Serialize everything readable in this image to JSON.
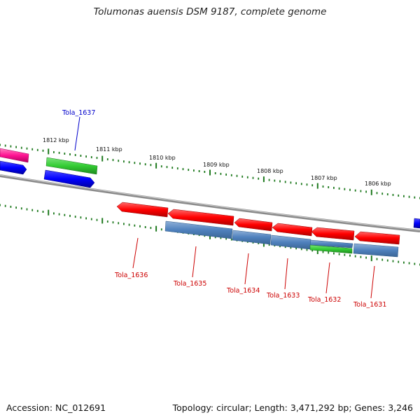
{
  "title": "Tolumonas auensis DSM 9187, complete genome",
  "footer": {
    "accession": "Accession: NC_012691",
    "topology": "Topology: circular; Length: 3,471,292 bp; Genes: 3,246"
  },
  "kbp_ticks": [
    "1812 kbp",
    "1811 kbp",
    "1810 kbp",
    "1809 kbp",
    "1808 kbp",
    "1807 kbp",
    "1806 kbp"
  ],
  "gene_labels": [
    "Tola_1637",
    "Tola_1636",
    "Tola_1635",
    "Tola_1634",
    "Tola_1633",
    "Tola_1632",
    "Tola_1631"
  ],
  "colors": {
    "backbone": "#8a8a8a",
    "tick": "#1f7a1f",
    "cds_red": "#ff0000",
    "cds_blue": "#0000ff",
    "cds_pink": "#ff1493",
    "rna_green": "#33cc33",
    "steelblue": "#4f81bd",
    "label_red": "#cc0000",
    "label_blue": "#0000cc"
  }
}
